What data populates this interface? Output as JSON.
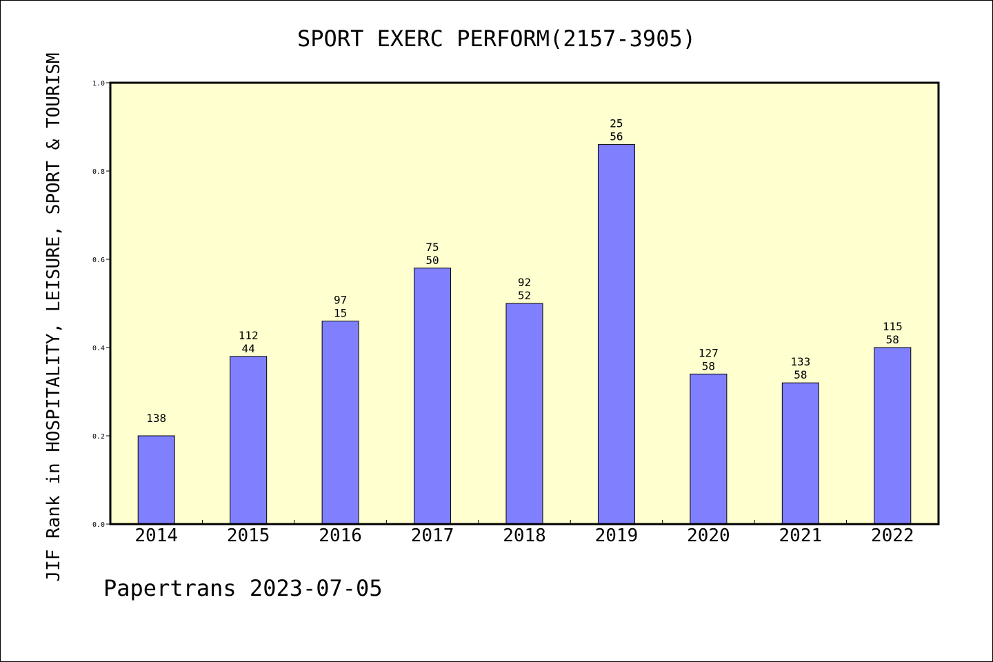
{
  "chart_data": {
    "type": "bar",
    "title": "SPORT EXERC PERFORM(2157-3905)",
    "ylabel": "JIF Rank in HOSPITALITY, LEISURE, SPORT & TOURISM",
    "xlabel": "",
    "ylim": [
      0.0,
      1.0
    ],
    "yticks": [
      "0.0",
      "0.2",
      "0.4",
      "0.6",
      "0.8",
      "1.0"
    ],
    "categories": [
      "2014",
      "2015",
      "2016",
      "2017",
      "2018",
      "2019",
      "2020",
      "2021",
      "2022"
    ],
    "values": [
      0.2,
      0.38,
      0.46,
      0.58,
      0.5,
      0.86,
      0.34,
      0.32,
      0.4
    ],
    "labels_top": [
      "138",
      "112",
      "97",
      "75",
      "92",
      "25",
      "127",
      "133",
      "115"
    ],
    "labels_bottom": [
      "",
      "44",
      "15",
      "50",
      "52",
      "56",
      "58",
      "58",
      "58"
    ],
    "plot_background": "#ffffd0",
    "bar_color": "#8080ff",
    "grid": false,
    "legend": "none"
  },
  "footer": "Papertrans 2023-07-05"
}
